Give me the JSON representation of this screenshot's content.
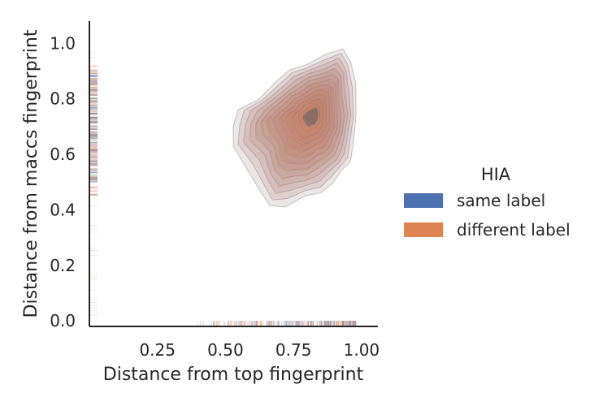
{
  "chart_data": {
    "type": "kde",
    "xlabel": "Distance from top fingerprint",
    "ylabel": "Distance from maccs fingerprint",
    "xlim": [
      0.0,
      1.06
    ],
    "ylim": [
      -0.02,
      1.08
    ],
    "xticks": [
      0.25,
      0.5,
      0.75,
      1.0
    ],
    "xtick_labels": [
      "0.25",
      "0.50",
      "0.75",
      "1.00"
    ],
    "yticks": [
      0.0,
      0.2,
      0.4,
      0.6,
      0.8,
      1.0
    ],
    "ytick_labels": [
      "0.0",
      "0.2",
      "0.4",
      "0.6",
      "0.8",
      "1.0"
    ],
    "grid": false,
    "legend": {
      "title": "HIA",
      "placement": "right",
      "entries": [
        {
          "label": "same label",
          "color": "#4c72b0"
        },
        {
          "label": "different label",
          "color": "#dd8452"
        }
      ]
    },
    "series": [
      {
        "name": "same label",
        "color": "#4c72b0",
        "density_center": [
          0.83,
          0.75
        ],
        "x_range": [
          0.5,
          0.99
        ],
        "y_range": [
          0.4,
          0.98
        ],
        "rug_x_range": [
          0.4,
          0.98
        ],
        "rug_y_range": [
          0.5,
          0.9
        ]
      },
      {
        "name": "different label",
        "color": "#dd8452",
        "density_center": [
          0.82,
          0.74
        ],
        "x_range": [
          0.48,
          0.99
        ],
        "y_range": [
          0.41,
          0.98
        ],
        "rug_x_range": [
          0.35,
          0.98
        ],
        "rug_y_range": [
          0.45,
          0.92
        ]
      }
    ]
  }
}
